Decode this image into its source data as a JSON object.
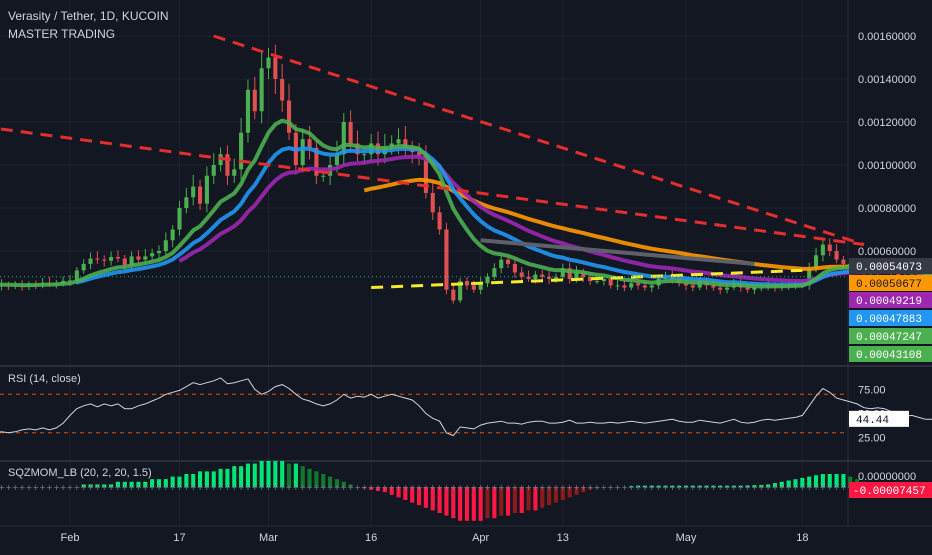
{
  "header": {
    "title": "Verasity / Tether, 1D, KUCOIN",
    "subtitle": "MASTER TRADING"
  },
  "colors": {
    "background": "#131722",
    "grid": "#1e222d",
    "up": "#26a69a",
    "down": "#ef5350",
    "candle_up": "#4caf50",
    "candle_down": "#e05050",
    "trend_red": "#e52e2e",
    "trend_yellow": "#f5ea28",
    "trend_gray": "#5d606b",
    "ma_green": "#4caf50",
    "ma_blue": "#2196f3",
    "ma_purple": "#9c27b0",
    "ma_orange": "#ff9800",
    "ma_pink": "#e040fb",
    "rsi_line": "#d1d4dc",
    "rsi_band": "#e65100"
  },
  "price_axis": {
    "labels": [
      "0.00160000",
      "0.00140000",
      "0.00120000",
      "0.00100000",
      "0.00080000",
      "0.00060000"
    ]
  },
  "price_tags": [
    {
      "value": "0.00054073",
      "bg": "#363a45",
      "fg": "#ffffff"
    },
    {
      "value": "0.00050677",
      "bg": "#ff9800",
      "fg": "#131722"
    },
    {
      "value": "0.00049219",
      "bg": "#9c27b0",
      "fg": "#ffffff"
    },
    {
      "value": "0.00047883",
      "bg": "#2196f3",
      "fg": "#ffffff"
    },
    {
      "value": "0.00047247",
      "bg": "#4caf50",
      "fg": "#ffffff"
    },
    {
      "value": "0.00043108",
      "bg": "#4caf50",
      "fg": "#ffffff"
    }
  ],
  "time_axis": {
    "labels": [
      "Feb",
      "17",
      "Mar",
      "16",
      "Apr",
      "13",
      "May",
      "18"
    ]
  },
  "rsi": {
    "legend": "RSI (14, close)",
    "axis_labels": [
      "75.00",
      "50.00",
      "25.00"
    ],
    "value": "44.44",
    "overbought": 70,
    "oversold": 30
  },
  "sqzmom": {
    "legend": "SQZMOM_LB (20, 2, 20, 1.5)",
    "axis_label": "0.00000000",
    "value": "-0.00007457"
  },
  "chart_data": {
    "type": "candlestick",
    "title": "Verasity / Tether, 1D, KUCOIN",
    "x_start": "2020-01-19",
    "interval": "1D",
    "closes": [
      0.000446,
      0.000441,
      0.000438,
      0.000442,
      0.000436,
      0.00044,
      0.000434,
      0.000445,
      0.000444,
      0.000452,
      0.000446,
      0.00045,
      0.000461,
      0.000463,
      0.00051,
      0.00054,
      0.000565,
      0.00056,
      0.000555,
      0.000572,
      0.000565,
      0.000535,
      0.000575,
      0.00056,
      0.000575,
      0.00059,
      0.0006,
      0.00065,
      0.0007,
      0.0008,
      0.00085,
      0.0009,
      0.00082,
      0.00095,
      0.001,
      0.00105,
      0.00095,
      0.00098,
      0.00115,
      0.00135,
      0.00125,
      0.00145,
      0.0015,
      0.0014,
      0.0013,
      0.00115,
      0.001,
      0.00112,
      0.00108,
      0.00095,
      0.00095,
      0.001,
      0.00105,
      0.0012,
      0.0011,
      0.00105,
      0.00105,
      0.0011,
      0.00105,
      0.00108,
      0.0011,
      0.00112,
      0.00108,
      0.00106,
      0.00104,
      0.00087,
      0.00078,
      0.0007,
      0.00042,
      0.00037,
      0.00046,
      0.00044,
      0.00042,
      0.00045,
      0.00048,
      0.00052,
      0.00056,
      0.00054,
      0.0005,
      0.00048,
      0.00047,
      0.00049,
      0.00048,
      0.00047,
      0.00048,
      0.00052,
      0.00047,
      0.0005,
      0.00048,
      0.00046,
      0.00046,
      0.00047,
      0.00044,
      0.00044,
      0.00043,
      0.00045,
      0.00044,
      0.00043,
      0.00044,
      0.00047,
      0.00048,
      0.00047,
      0.00045,
      0.00044,
      0.00043,
      0.00046,
      0.00044,
      0.00043,
      0.00042,
      0.00043,
      0.00045,
      0.00043,
      0.00042,
      0.00043,
      0.00043,
      0.00044,
      0.00043,
      0.00044,
      0.00044,
      0.00045,
      0.00044,
      0.00052,
      0.00058,
      0.00063,
      0.0006,
      0.00056,
      0.00054,
      0.00054,
      0.00053,
      0.0005,
      0.00051,
      0.00053,
      0.00052,
      0.00051,
      0.00048,
      0.00048,
      0.00049,
      0.00048,
      0.00047,
      0.00048,
      0.00048
    ],
    "moving_averages": [
      {
        "name": "ma_green",
        "color": "#4caf50"
      },
      {
        "name": "ma_blue",
        "color": "#2196f3"
      },
      {
        "name": "ma_purple",
        "color": "#9c27b0"
      },
      {
        "name": "ma_orange",
        "color": "#ff9800"
      }
    ],
    "trendlines": [
      {
        "name": "upper-resistance",
        "color": "#e52e2e",
        "style": "dashed",
        "from": [
          "2020-02-22",
          0.0016
        ],
        "to": [
          "2020-05-27",
          0.00063
        ]
      },
      {
        "name": "long-resistance",
        "color": "#e52e2e",
        "style": "dashed",
        "from": [
          "2020-01-19",
          0.00118
        ],
        "to": [
          "2020-05-27",
          0.00063
        ]
      },
      {
        "name": "support",
        "color": "#f5ea28",
        "style": "dashed",
        "from": [
          "2020-03-16",
          0.00043
        ],
        "to": [
          "2020-05-18",
          0.00051
        ]
      }
    ],
    "ylim": [
      0.00035,
      0.00172
    ],
    "rsi_values": [
      31,
      30,
      30,
      31,
      30,
      31,
      33,
      34,
      33,
      35,
      33,
      35,
      40,
      48,
      55,
      58,
      60,
      57,
      60,
      58,
      60,
      55,
      55,
      58,
      60,
      63,
      66,
      70,
      72,
      74,
      78,
      82,
      80,
      82,
      84,
      87,
      81,
      82,
      84,
      86,
      75,
      70,
      73,
      78,
      80,
      76,
      70,
      65,
      63,
      60,
      58,
      60,
      64,
      70,
      66,
      68,
      67,
      70,
      66,
      68,
      70,
      68,
      66,
      64,
      58,
      50,
      45,
      42,
      30,
      27,
      36,
      35,
      34,
      38,
      40,
      41,
      42,
      40,
      40,
      39,
      41,
      42,
      42,
      40,
      40,
      41,
      43,
      40,
      40,
      41,
      40,
      40,
      41,
      40,
      41,
      42,
      41,
      40,
      41,
      42,
      43,
      44,
      42,
      41,
      41,
      43,
      42,
      41,
      40,
      42,
      44,
      41,
      40,
      41,
      43,
      44,
      43,
      44,
      45,
      46,
      48,
      58,
      68,
      76,
      72,
      66,
      64,
      62,
      60,
      56,
      55,
      56,
      55,
      52,
      47,
      47,
      48,
      46,
      44,
      44,
      45
    ],
    "sqzmom_values": [
      0,
      0,
      0,
      0,
      0,
      0,
      0,
      0,
      0,
      0,
      0,
      0,
      0,
      0,
      0,
      1,
      1,
      1,
      1,
      1,
      2,
      2,
      2,
      2,
      2,
      3,
      3,
      3,
      4,
      4,
      5,
      5,
      6,
      6,
      6,
      7,
      7,
      8,
      8,
      9,
      9,
      10,
      10,
      10,
      10,
      9,
      9,
      8,
      7,
      6,
      5,
      4,
      3,
      2,
      1,
      0,
      -0.5,
      -1,
      -1.5,
      -2,
      -3,
      -4,
      -5,
      -6,
      -7,
      -8,
      -9,
      -10,
      -11,
      -12,
      -13,
      -13,
      -13,
      -13,
      -12,
      -12,
      -11,
      -11,
      -10,
      -10,
      -9,
      -9,
      -8,
      -7,
      -6,
      -5,
      -4,
      -3,
      -2,
      -1,
      -0.5,
      0,
      0,
      0,
      0,
      0.3,
      0.5,
      0.5,
      0.5,
      0.5,
      0.5,
      0.5,
      0.5,
      0.5,
      0.5,
      0.5,
      0.5,
      0.5,
      0.5,
      0.5,
      0.5,
      0.5,
      0.6,
      0.7,
      0.8,
      1,
      1.5,
      2,
      2.5,
      3,
      3.5,
      4,
      4.5,
      5,
      5,
      5,
      5,
      4,
      3,
      2,
      1,
      0,
      -0.5,
      -1,
      -1.5,
      -2,
      -2.5,
      -3,
      -3,
      -3,
      -3
    ]
  }
}
